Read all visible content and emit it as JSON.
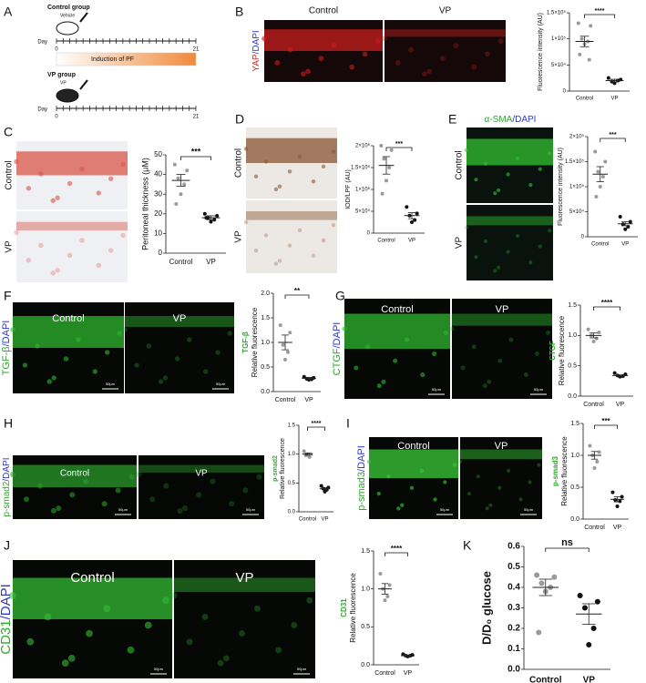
{
  "panel_labels": [
    "A",
    "B",
    "C",
    "D",
    "E",
    "F",
    "G",
    "H",
    "I",
    "J",
    "K"
  ],
  "schematic": {
    "control_group": "Control group",
    "vehicle": "Vehicle",
    "vp_group": "VP group",
    "vp": "VP",
    "day": "Day",
    "start": "0",
    "end": "21",
    "induction": "Induction of PF"
  },
  "images": [
    {
      "labels": [
        "Control",
        "VP"
      ],
      "stain": [
        {
          "text": "YAP",
          "color": "#d42020"
        },
        {
          "text": "/DAPI",
          "color": "#2a3bd0"
        }
      ],
      "background": "#140808",
      "tone": "#c81e1e"
    },
    {
      "labels": [
        "Control",
        "VP"
      ],
      "background": "#eef0f4",
      "tone": "#d9574a"
    },
    {
      "labels": [
        "Control",
        "VP"
      ],
      "background": "#ece8e4",
      "tone": "#8a5634"
    },
    {
      "labels": [
        "Control",
        "VP"
      ],
      "stain": [
        {
          "text": "α-SMA",
          "color": "#2ea82e"
        },
        {
          "text": "/DAPI",
          "color": "#2a3bd0"
        }
      ],
      "background": "#0a120e",
      "tone": "#33c233"
    },
    {
      "labels": [
        "Control",
        "VP"
      ],
      "stain": [
        {
          "text": "TGF-β",
          "color": "#2ea82e"
        },
        {
          "text": "/DAPI",
          "color": "#2a3bd0"
        }
      ],
      "background": "#050805",
      "tone": "#2fb52f",
      "scale": "50μm"
    },
    {
      "labels": [
        "Control",
        "VP"
      ],
      "stain": [
        {
          "text": "CTGF",
          "color": "#2ea82e"
        },
        {
          "text": "/DAPI",
          "color": "#2a3bd0"
        }
      ],
      "background": "#050805",
      "tone": "#2fb52f",
      "scale": "50μm"
    },
    {
      "labels": [
        "Control",
        "VP"
      ],
      "stain": [
        {
          "text": "p-smad2",
          "color": "#2ea82e"
        },
        {
          "text": "/DAPI",
          "color": "#2a3bd0"
        }
      ],
      "background": "#040704",
      "tone": "#2a9c2a",
      "scale": "50μm"
    },
    {
      "labels": [
        "Control",
        "VP"
      ],
      "stain": [
        {
          "text": "p-smad3",
          "color": "#2ea82e"
        },
        {
          "text": "/DAPI",
          "color": "#2a3bd0"
        }
      ],
      "background": "#050805",
      "tone": "#3acc3a",
      "scale": "50μm"
    },
    {
      "labels": [
        "Control",
        "VP"
      ],
      "stain": [
        {
          "text": "CD31",
          "color": "#2ea82e"
        },
        {
          "text": "/DAPI",
          "color": "#2a3bd0"
        }
      ],
      "background": "#050805",
      "tone": "#34bb34",
      "scale": "50μm"
    }
  ],
  "chart_data": [
    {
      "type": "dot",
      "ylabel": "Fluorescence intensity (AU)",
      "categories": [
        "Control",
        "VP"
      ],
      "colors": [
        "#9a9a9a",
        "#111111"
      ],
      "points": [
        [
          130000,
          125000,
          100000,
          95000,
          90000,
          70000,
          60000
        ],
        [
          25000,
          22000,
          18000,
          20000,
          15000
        ]
      ],
      "means": [
        95000,
        20000
      ],
      "sem": [
        10000,
        2500
      ],
      "ylim": [
        0,
        150000
      ],
      "yticks": [
        0,
        {
          "value": 50000,
          "label": "5×10⁴"
        },
        {
          "value": 100000,
          "label": "1×10⁵"
        },
        {
          "value": 150000,
          "label": "1.5×10⁵"
        }
      ],
      "significance": "****"
    },
    {
      "type": "dot",
      "ylabel": "Peritoneal thickness (μM)",
      "categories": [
        "Control",
        "VP"
      ],
      "colors": [
        "#9a9a9a",
        "#111111"
      ],
      "points": [
        [
          45,
          42,
          38,
          35,
          30,
          25
        ],
        [
          20,
          19,
          18,
          17,
          16,
          18
        ]
      ],
      "means": [
        37,
        18
      ],
      "sem": [
        3,
        1
      ],
      "ylim": [
        0,
        50
      ],
      "yticks": [
        0,
        10,
        20,
        30,
        40,
        50
      ],
      "significance": "***"
    },
    {
      "type": "dot",
      "ylabel": "IOD/LPF (AU)",
      "categories": [
        "Control",
        "VP"
      ],
      "colors": [
        "#9a9a9a",
        "#111111"
      ],
      "points": [
        [
          2000000,
          1900000,
          1700000,
          1500000,
          1200000,
          900000
        ],
        [
          600000,
          450000,
          400000,
          300000,
          250000
        ]
      ],
      "means": [
        1550000,
        400000
      ],
      "sem": [
        200000,
        70000
      ],
      "ylim": [
        0,
        2000000
      ],
      "yticks": [
        0,
        {
          "value": 500000,
          "label": "5×10⁵"
        },
        {
          "value": 1000000,
          "label": "1×10⁶"
        },
        {
          "value": 1500000,
          "label": "1.5×10⁶"
        },
        {
          "value": 2000000,
          "label": "2×10⁶"
        }
      ],
      "significance": "***"
    },
    {
      "type": "dot",
      "ylabel": "Fluorescence intensity (AU)",
      "categories": [
        "Control",
        "VP"
      ],
      "colors": [
        "#9a9a9a",
        "#111111"
      ],
      "points": [
        [
          170000,
          150000,
          130000,
          120000,
          100000,
          80000
        ],
        [
          40000,
          30000,
          25000,
          20000,
          15000
        ]
      ],
      "means": [
        125000,
        26000
      ],
      "sem": [
        15000,
        4000
      ],
      "ylim": [
        0,
        200000
      ],
      "yticks": [
        0,
        {
          "value": 50000,
          "label": "5×10⁴"
        },
        {
          "value": 100000,
          "label": "1×10⁵"
        },
        {
          "value": 150000,
          "label": "1.5×10⁵"
        },
        {
          "value": 200000,
          "label": "2×10⁵"
        }
      ],
      "significance": "***"
    },
    {
      "type": "dot",
      "ylabel": "Relative fluorescence",
      "marker": "TGF-β",
      "categories": [
        "Control",
        "VP"
      ],
      "colors": [
        "#9a9a9a",
        "#111111"
      ],
      "points": [
        [
          1.35,
          1.2,
          0.95,
          0.8,
          0.65
        ],
        [
          0.3,
          0.28,
          0.26,
          0.25,
          0.24
        ]
      ],
      "means": [
        1.0,
        0.27
      ],
      "sem": [
        0.15,
        0.02
      ],
      "ylim": [
        0,
        2
      ],
      "yticks": [
        {
          "value": 0,
          "label": "0.0"
        },
        0.5,
        {
          "value": 1,
          "label": "1.0"
        },
        1.5,
        {
          "value": 2,
          "label": "2.0"
        }
      ],
      "significance": "**"
    },
    {
      "type": "dot",
      "ylabel": "Relative fluorescence",
      "marker": "CTGF",
      "categories": [
        "Control",
        "VP"
      ],
      "colors": [
        "#9a9a9a",
        "#111111"
      ],
      "points": [
        [
          1.1,
          1.05,
          1.0,
          0.95,
          0.9
        ],
        [
          0.38,
          0.36,
          0.34,
          0.33,
          0.32
        ]
      ],
      "means": [
        1.0,
        0.34
      ],
      "sem": [
        0.04,
        0.01
      ],
      "ylim": [
        0,
        1.5
      ],
      "yticks": [
        {
          "value": 0,
          "label": "0.0"
        },
        0.5,
        {
          "value": 1,
          "label": "1.0"
        },
        1.5
      ],
      "significance": "****"
    },
    {
      "type": "dot",
      "ylabel": "Relative fluorescence",
      "marker": "p-smad2",
      "categories": [
        "Control",
        "VP"
      ],
      "colors": [
        "#9a9a9a",
        "#111111"
      ],
      "points": [
        [
          1.05,
          1.0,
          0.98,
          0.95
        ],
        [
          0.45,
          0.42,
          0.4,
          0.38,
          0.35
        ]
      ],
      "means": [
        1.0,
        0.4
      ],
      "sem": [
        0.02,
        0.02
      ],
      "ylim": [
        0,
        1.5
      ],
      "yticks": [
        {
          "value": 0,
          "label": "0.0"
        },
        0.5,
        {
          "value": 1,
          "label": "1.0"
        },
        1.5
      ],
      "significance": "****"
    },
    {
      "type": "dot",
      "ylabel": "Relative fluorescence",
      "marker": "p-smad3",
      "categories": [
        "Control",
        "VP"
      ],
      "colors": [
        "#9a9a9a",
        "#111111"
      ],
      "points": [
        [
          1.15,
          1.05,
          1.0,
          0.9,
          0.8
        ],
        [
          0.42,
          0.35,
          0.3,
          0.28,
          0.2
        ]
      ],
      "means": [
        1.0,
        0.31
      ],
      "sem": [
        0.06,
        0.04
      ],
      "ylim": [
        0,
        1.5
      ],
      "yticks": [
        {
          "value": 0,
          "label": "0.0"
        },
        0.5,
        {
          "value": 1,
          "label": "1.0"
        },
        1.5
      ],
      "significance": "***"
    },
    {
      "type": "dot",
      "ylabel": "Relative fluorescence",
      "marker": "CD31",
      "categories": [
        "Control",
        "VP"
      ],
      "colors": [
        "#9a9a9a",
        "#111111"
      ],
      "points": [
        [
          1.2,
          1.05,
          1.0,
          0.9,
          0.85
        ],
        [
          0.14,
          0.13,
          0.12,
          0.12,
          0.11
        ]
      ],
      "means": [
        1.0,
        0.12
      ],
      "sem": [
        0.07,
        0.01
      ],
      "ylim": [
        0,
        1.5
      ],
      "yticks": [
        {
          "value": 0,
          "label": "0.0"
        },
        0.5,
        {
          "value": 1,
          "label": "1.0"
        },
        1.5
      ],
      "significance": "****"
    },
    {
      "type": "dot",
      "ylabel": "D/D₀ glucose",
      "categories": [
        "Control",
        "VP"
      ],
      "colors": [
        "#9a9a9a",
        "#111111"
      ],
      "points": [
        [
          0.46,
          0.45,
          0.42,
          0.4,
          0.38,
          0.18
        ],
        [
          0.36,
          0.33,
          0.3,
          0.2,
          0.12
        ]
      ],
      "means": [
        0.4,
        0.27
      ],
      "sem": [
        0.04,
        0.05
      ],
      "ylim": [
        0,
        0.6
      ],
      "yticks": [
        {
          "value": 0,
          "label": "0.0"
        },
        0.1,
        0.2,
        0.3,
        0.4,
        0.5,
        0.6
      ],
      "significance": "ns"
    }
  ]
}
